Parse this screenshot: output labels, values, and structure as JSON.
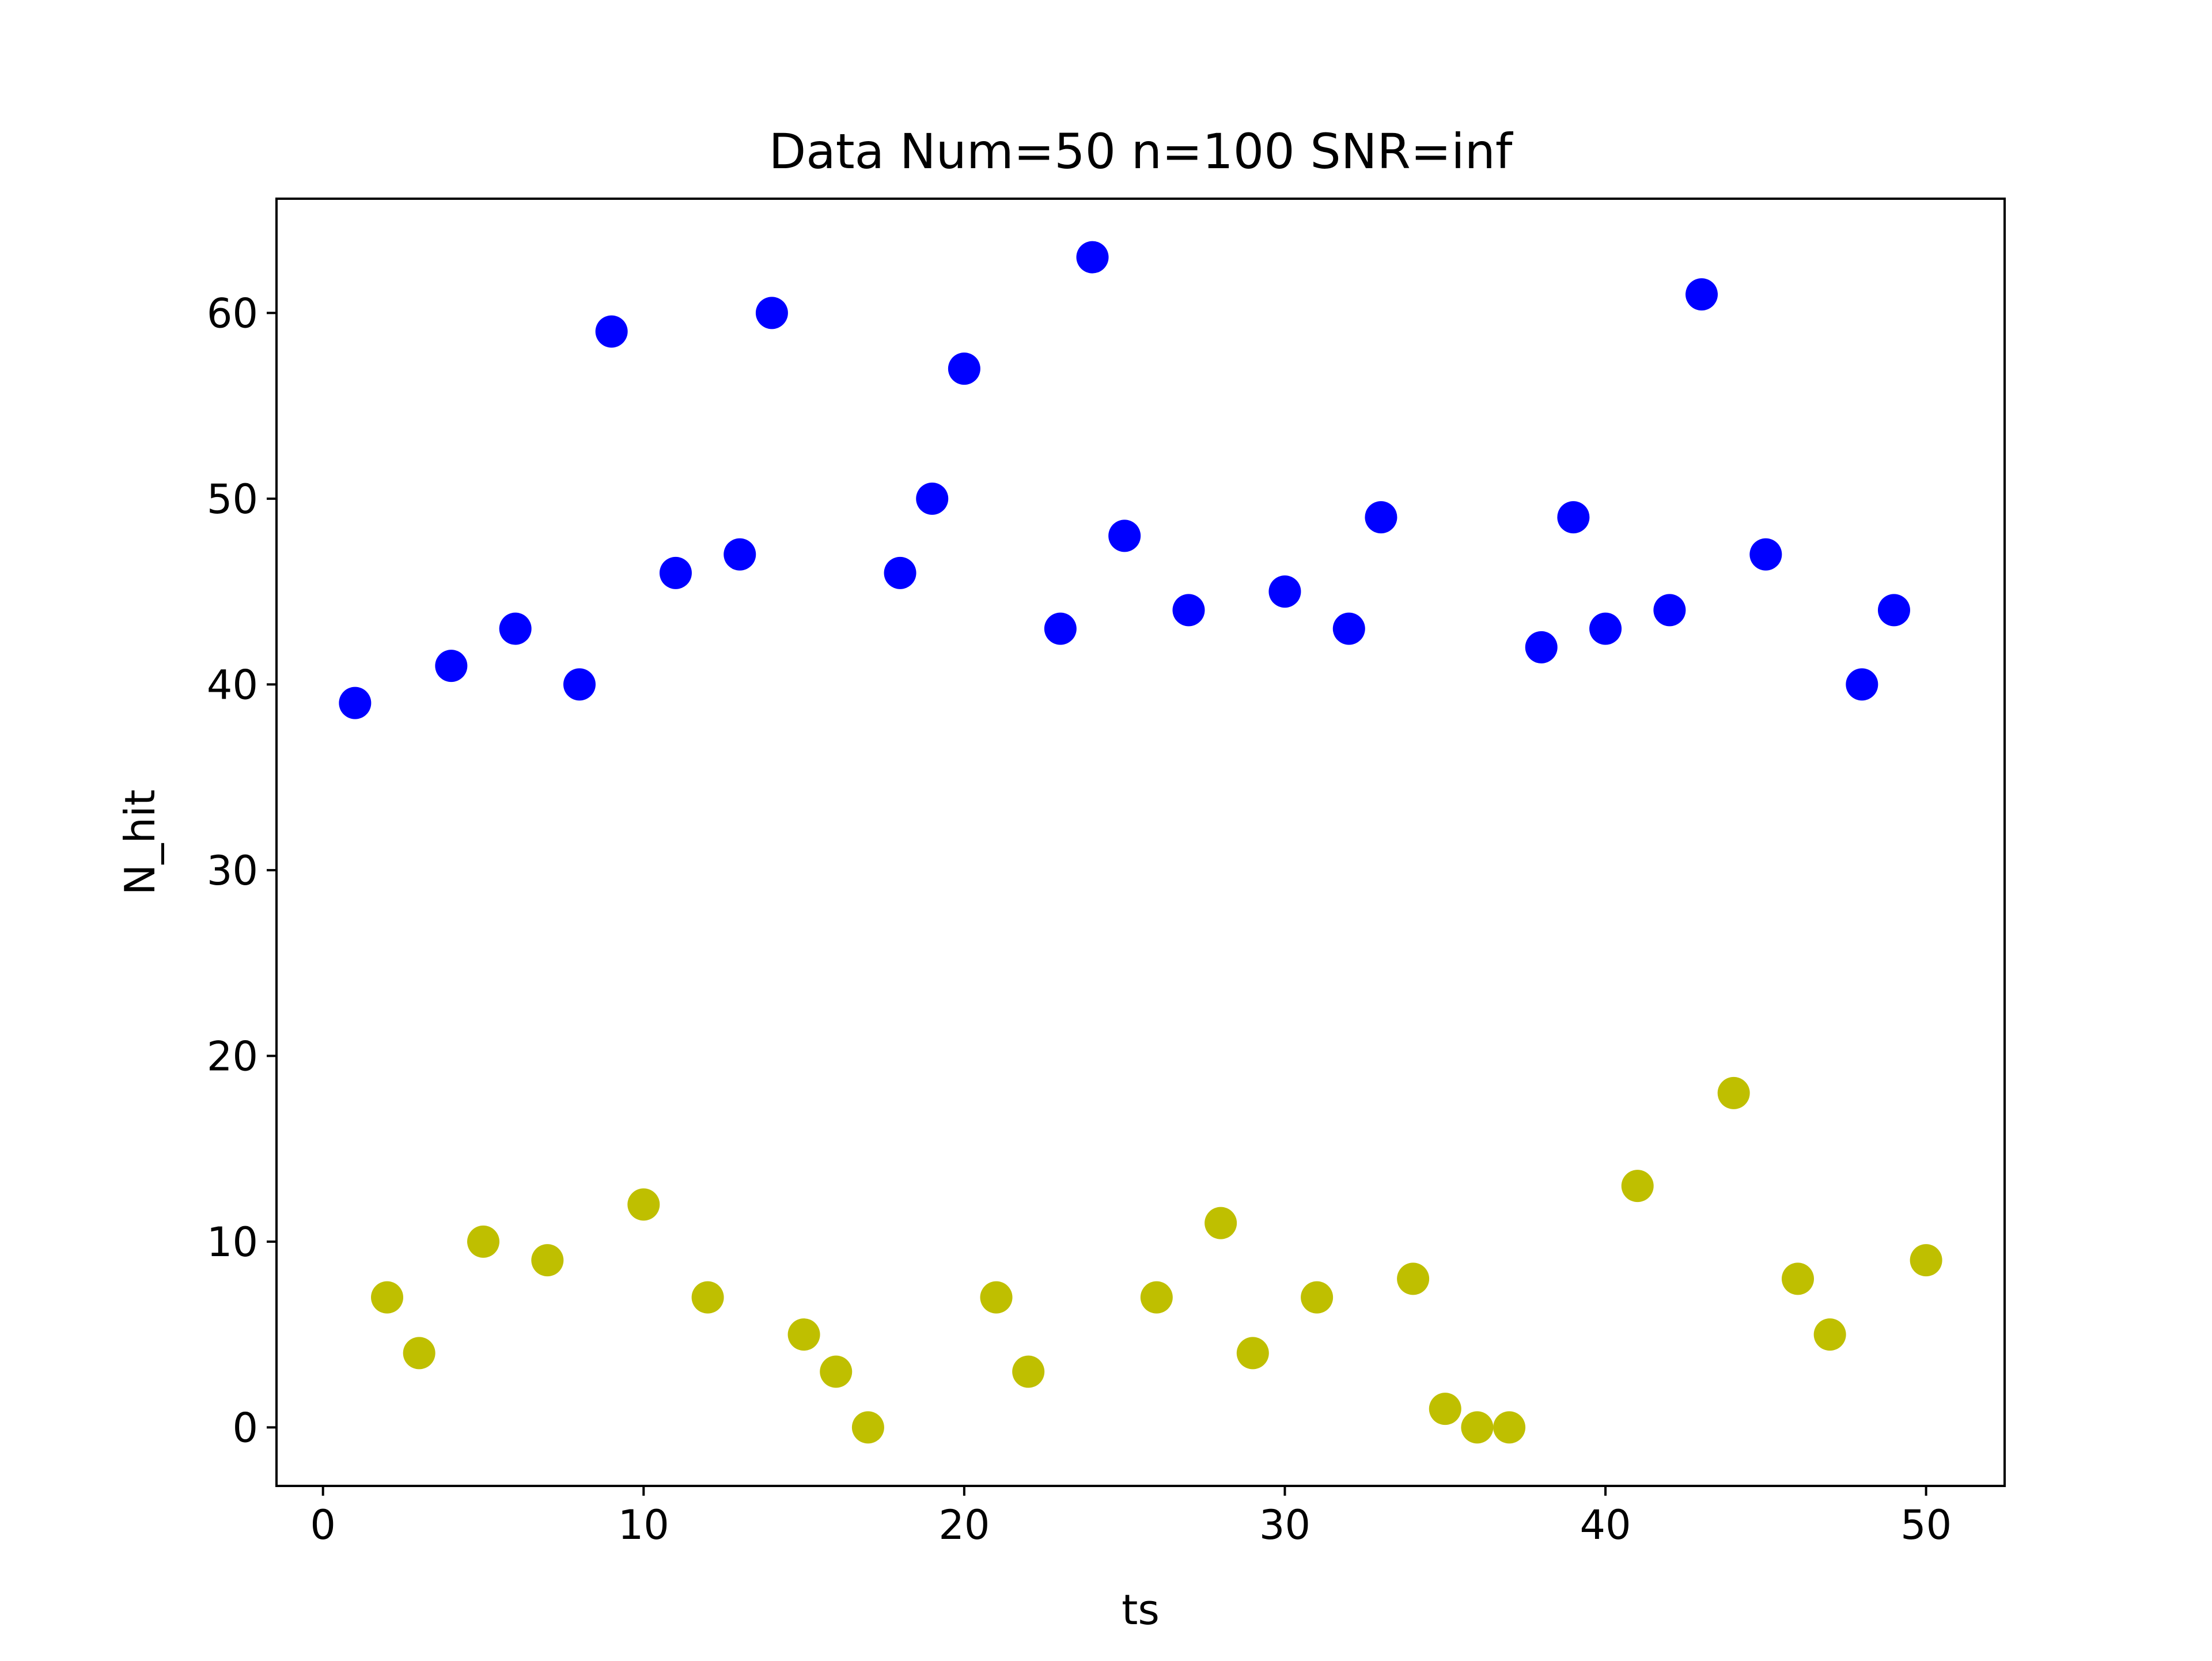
{
  "chart_data": {
    "type": "scatter",
    "title": "Data Num=50 n=100 SNR=inf",
    "xlabel": "ts",
    "ylabel": "N_hit",
    "xlim": [
      -1.45,
      52.45
    ],
    "ylim": [
      -3.15,
      66.15
    ],
    "xticks": [
      0,
      10,
      20,
      30,
      40,
      50
    ],
    "yticks": [
      0,
      10,
      20,
      30,
      40,
      50,
      60
    ],
    "grid": false,
    "legend": "none",
    "series": [
      {
        "color": "#0000ff",
        "points": [
          {
            "x": 1,
            "y": 39
          },
          {
            "x": 4,
            "y": 41
          },
          {
            "x": 6,
            "y": 43
          },
          {
            "x": 8,
            "y": 40
          },
          {
            "x": 9,
            "y": 59
          },
          {
            "x": 11,
            "y": 46
          },
          {
            "x": 13,
            "y": 47
          },
          {
            "x": 14,
            "y": 60
          },
          {
            "x": 18,
            "y": 46
          },
          {
            "x": 19,
            "y": 50
          },
          {
            "x": 20,
            "y": 57
          },
          {
            "x": 23,
            "y": 43
          },
          {
            "x": 24,
            "y": 63
          },
          {
            "x": 25,
            "y": 48
          },
          {
            "x": 27,
            "y": 44
          },
          {
            "x": 30,
            "y": 45
          },
          {
            "x": 32,
            "y": 43
          },
          {
            "x": 33,
            "y": 49
          },
          {
            "x": 38,
            "y": 42
          },
          {
            "x": 39,
            "y": 49
          },
          {
            "x": 40,
            "y": 43
          },
          {
            "x": 42,
            "y": 44
          },
          {
            "x": 43,
            "y": 61
          },
          {
            "x": 45,
            "y": 47
          },
          {
            "x": 48,
            "y": 40
          },
          {
            "x": 49,
            "y": 44
          }
        ]
      },
      {
        "color": "#bfbf00",
        "points": [
          {
            "x": 2,
            "y": 7
          },
          {
            "x": 3,
            "y": 4
          },
          {
            "x": 5,
            "y": 10
          },
          {
            "x": 7,
            "y": 9
          },
          {
            "x": 10,
            "y": 12
          },
          {
            "x": 12,
            "y": 7
          },
          {
            "x": 15,
            "y": 5
          },
          {
            "x": 16,
            "y": 3
          },
          {
            "x": 17,
            "y": 0
          },
          {
            "x": 21,
            "y": 7
          },
          {
            "x": 22,
            "y": 3
          },
          {
            "x": 26,
            "y": 7
          },
          {
            "x": 28,
            "y": 11
          },
          {
            "x": 29,
            "y": 4
          },
          {
            "x": 31,
            "y": 7
          },
          {
            "x": 34,
            "y": 8
          },
          {
            "x": 35,
            "y": 1
          },
          {
            "x": 36,
            "y": 0
          },
          {
            "x": 37,
            "y": 0
          },
          {
            "x": 41,
            "y": 13
          },
          {
            "x": 44,
            "y": 18
          },
          {
            "x": 46,
            "y": 8
          },
          {
            "x": 47,
            "y": 5
          },
          {
            "x": 50,
            "y": 9
          }
        ]
      }
    ]
  }
}
